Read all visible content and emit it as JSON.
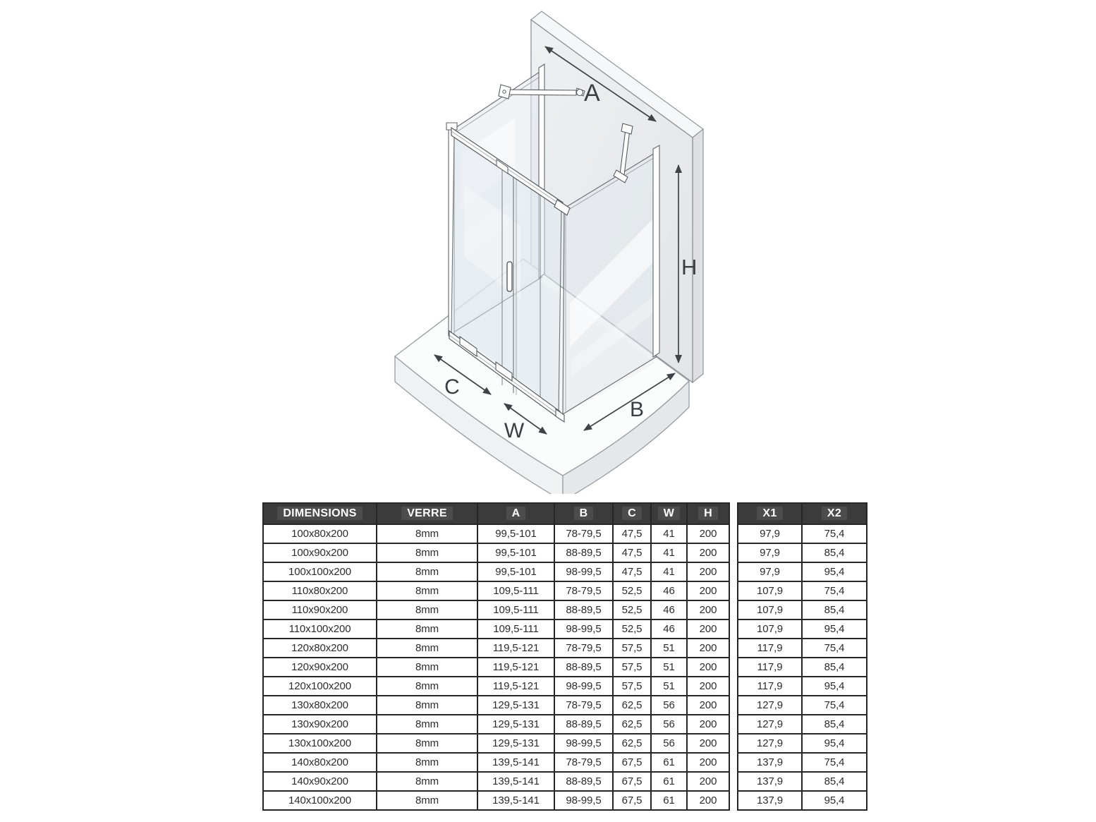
{
  "diagram": {
    "labels": {
      "a": "A",
      "b": "B",
      "c": "C",
      "w": "W",
      "h": "H"
    }
  },
  "main_table": {
    "headers": [
      "DIMENSIONS",
      "VERRE",
      "A",
      "B",
      "C",
      "W",
      "H"
    ],
    "rows": [
      [
        "100x80x200",
        "8mm",
        "99,5-101",
        "78-79,5",
        "47,5",
        "41",
        "200"
      ],
      [
        "100x90x200",
        "8mm",
        "99,5-101",
        "88-89,5",
        "47,5",
        "41",
        "200"
      ],
      [
        "100x100x200",
        "8mm",
        "99,5-101",
        "98-99,5",
        "47,5",
        "41",
        "200"
      ],
      [
        "110x80x200",
        "8mm",
        "109,5-111",
        "78-79,5",
        "52,5",
        "46",
        "200"
      ],
      [
        "110x90x200",
        "8mm",
        "109,5-111",
        "88-89,5",
        "52,5",
        "46",
        "200"
      ],
      [
        "110x100x200",
        "8mm",
        "109,5-111",
        "98-99,5",
        "52,5",
        "46",
        "200"
      ],
      [
        "120x80x200",
        "8mm",
        "119,5-121",
        "78-79,5",
        "57,5",
        "51",
        "200"
      ],
      [
        "120x90x200",
        "8mm",
        "119,5-121",
        "88-89,5",
        "57,5",
        "51",
        "200"
      ],
      [
        "120x100x200",
        "8mm",
        "119,5-121",
        "98-99,5",
        "57,5",
        "51",
        "200"
      ],
      [
        "130x80x200",
        "8mm",
        "129,5-131",
        "78-79,5",
        "62,5",
        "56",
        "200"
      ],
      [
        "130x90x200",
        "8mm",
        "129,5-131",
        "88-89,5",
        "62,5",
        "56",
        "200"
      ],
      [
        "130x100x200",
        "8mm",
        "129,5-131",
        "98-99,5",
        "62,5",
        "56",
        "200"
      ],
      [
        "140x80x200",
        "8mm",
        "139,5-141",
        "78-79,5",
        "67,5",
        "61",
        "200"
      ],
      [
        "140x90x200",
        "8mm",
        "139,5-141",
        "88-89,5",
        "67,5",
        "61",
        "200"
      ],
      [
        "140x100x200",
        "8mm",
        "139,5-141",
        "98-99,5",
        "67,5",
        "61",
        "200"
      ]
    ]
  },
  "x_table": {
    "headers": [
      "X1",
      "X2"
    ],
    "rows": [
      [
        "97,9",
        "75,4"
      ],
      [
        "97,9",
        "85,4"
      ],
      [
        "97,9",
        "95,4"
      ],
      [
        "107,9",
        "75,4"
      ],
      [
        "107,9",
        "85,4"
      ],
      [
        "107,9",
        "95,4"
      ],
      [
        "117,9",
        "75,4"
      ],
      [
        "117,9",
        "85,4"
      ],
      [
        "117,9",
        "95,4"
      ],
      [
        "127,9",
        "75,4"
      ],
      [
        "127,9",
        "85,4"
      ],
      [
        "127,9",
        "95,4"
      ],
      [
        "137,9",
        "75,4"
      ],
      [
        "137,9",
        "85,4"
      ],
      [
        "137,9",
        "95,4"
      ]
    ]
  },
  "colors": {
    "header_bg": "#3b3b3b",
    "header_text": "#ffffff",
    "grid_border": "#262626",
    "arrow": "#3f4347",
    "wall_fill": "#e9ebee"
  }
}
